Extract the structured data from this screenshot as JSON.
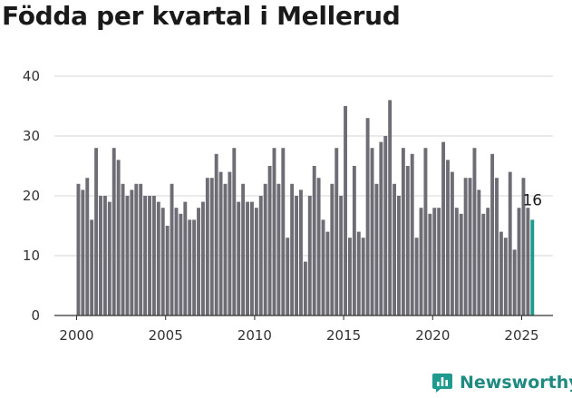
{
  "chart_data": {
    "type": "bar",
    "title": "Födda per kvartal i Mellerud",
    "xlabel": "",
    "ylabel": "",
    "ylim": [
      0,
      40
    ],
    "yticks": [
      0,
      10,
      20,
      30,
      40
    ],
    "xticks": [
      "2000",
      "2005",
      "2010",
      "2015",
      "2020",
      "2025"
    ],
    "start_year": 2000,
    "start_quarter": 1,
    "values": [
      22,
      21,
      23,
      16,
      28,
      20,
      20,
      19,
      28,
      26,
      22,
      20,
      21,
      22,
      22,
      20,
      20,
      20,
      19,
      18,
      15,
      22,
      18,
      17,
      19,
      16,
      16,
      18,
      19,
      23,
      23,
      27,
      24,
      22,
      24,
      28,
      19,
      22,
      19,
      19,
      18,
      20,
      22,
      25,
      28,
      22,
      28,
      13,
      22,
      20,
      21,
      9,
      20,
      25,
      23,
      16,
      14,
      22,
      28,
      20,
      35,
      13,
      25,
      14,
      13,
      33,
      28,
      22,
      29,
      30,
      36,
      22,
      20,
      28,
      25,
      27,
      13,
      18,
      28,
      17,
      18,
      18,
      29,
      26,
      24,
      18,
      17,
      23,
      23,
      28,
      21,
      17,
      18,
      27,
      23,
      14,
      13,
      24,
      11,
      18,
      23,
      18,
      16
    ],
    "highlight_last": true,
    "last_label": "16",
    "bar_color": "#6e6d75",
    "highlight_color": "#1e9a8e",
    "grid": true,
    "legend": "none"
  },
  "brand": {
    "name": "Newsworthy",
    "icon": "newsworthy-logo-icon",
    "color": "#1e8a80"
  }
}
